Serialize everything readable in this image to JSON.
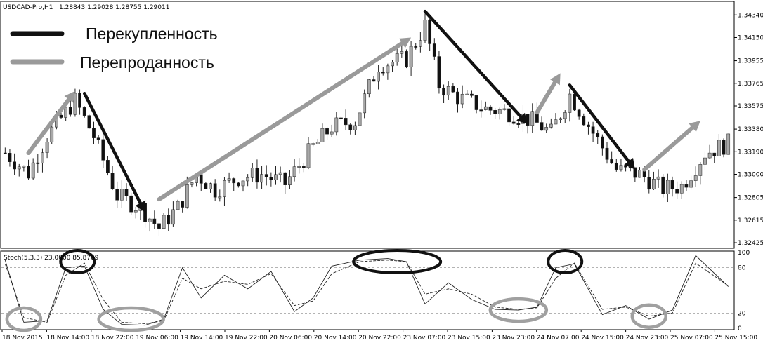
{
  "header": {
    "symbol": "USDCAD-Pro,H1",
    "ohlc": "1.28843 1.29028 1.28755 1.29011"
  },
  "legend": {
    "overbought": "Перекупленность",
    "oversold": "Перепроданность"
  },
  "stoch_header": "Stoch(5,3,3) 23.0000 85.8709",
  "colors": {
    "overbought_arrow": "#111111",
    "oversold_arrow": "#9a9a9a",
    "candle_bull": "#a8a8a8",
    "candle_bear": "#111111",
    "ellipse_dark": "#111111",
    "ellipse_light": "#a0a0a0"
  },
  "chart_data": [
    {
      "type": "candlestick",
      "title": "USDCAD-Pro,H1",
      "ylim": [
        1.3239,
        1.3443
      ],
      "yticks": [
        "1.34340",
        "1.34150",
        "1.33955",
        "1.33765",
        "1.33575",
        "1.33380",
        "1.33190",
        "1.33000",
        "1.32805",
        "1.32615",
        "1.32425"
      ],
      "xticks": [
        "18 Nov 2015",
        "18 Nov 14:00",
        "18 Nov 22:00",
        "19 Nov 06:00",
        "19 Nov 14:00",
        "19 Nov 22:00",
        "20 Nov 06:00",
        "20 Nov 14:00",
        "20 Nov 22:00",
        "23 Nov 07:00",
        "23 Nov 15:00",
        "23 Nov 23:00",
        "24 Nov 07:00",
        "24 Nov 15:00",
        "24 Nov 23:00",
        "25 Nov 07:00",
        "25 Nov 15:00"
      ],
      "close_path": [
        {
          "t": 0,
          "price": 1.3318
        },
        {
          "t": 5,
          "price": 1.3301
        },
        {
          "t": 9,
          "price": 1.3332
        },
        {
          "t": 15,
          "price": 1.3362
        },
        {
          "t": 19,
          "price": 1.3332
        },
        {
          "t": 24,
          "price": 1.3282
        },
        {
          "t": 29,
          "price": 1.3272
        },
        {
          "t": 33,
          "price": 1.3255
        },
        {
          "t": 37,
          "price": 1.3272
        },
        {
          "t": 41,
          "price": 1.33
        },
        {
          "t": 45,
          "price": 1.3287
        },
        {
          "t": 50,
          "price": 1.3297
        },
        {
          "t": 55,
          "price": 1.33
        },
        {
          "t": 60,
          "price": 1.3292
        },
        {
          "t": 65,
          "price": 1.3318
        },
        {
          "t": 70,
          "price": 1.334
        },
        {
          "t": 75,
          "price": 1.3345
        },
        {
          "t": 80,
          "price": 1.3392
        },
        {
          "t": 86,
          "price": 1.3397
        },
        {
          "t": 90,
          "price": 1.3425
        },
        {
          "t": 93,
          "price": 1.3375
        },
        {
          "t": 97,
          "price": 1.3365
        },
        {
          "t": 103,
          "price": 1.3355
        },
        {
          "t": 108,
          "price": 1.3352
        },
        {
          "t": 113,
          "price": 1.3345
        },
        {
          "t": 117,
          "price": 1.3335
        },
        {
          "t": 121,
          "price": 1.3367
        },
        {
          "t": 126,
          "price": 1.3335
        },
        {
          "t": 131,
          "price": 1.3304
        },
        {
          "t": 136,
          "price": 1.33
        },
        {
          "t": 141,
          "price": 1.3288
        },
        {
          "t": 145,
          "price": 1.329
        },
        {
          "t": 150,
          "price": 1.3318
        },
        {
          "t": 155,
          "price": 1.3326
        }
      ],
      "arrows": [
        {
          "kind": "oversold",
          "from": {
            "t": 5,
            "price": 1.3318
          },
          "to": {
            "t": 15,
            "price": 1.337
          }
        },
        {
          "kind": "overbought",
          "from": {
            "t": 17,
            "price": 1.3368
          },
          "to": {
            "t": 30,
            "price": 1.3268
          }
        },
        {
          "kind": "oversold",
          "from": {
            "t": 33,
            "price": 1.3279
          },
          "to": {
            "t": 87,
            "price": 1.3415
          }
        },
        {
          "kind": "overbought",
          "from": {
            "t": 90,
            "price": 1.3437
          },
          "to": {
            "t": 112,
            "price": 1.3342
          }
        },
        {
          "kind": "oversold",
          "from": {
            "t": 114,
            "price": 1.3352
          },
          "to": {
            "t": 119,
            "price": 1.3385
          }
        },
        {
          "kind": "overbought",
          "from": {
            "t": 121,
            "price": 1.3375
          },
          "to": {
            "t": 135,
            "price": 1.3304
          }
        },
        {
          "kind": "oversold",
          "from": {
            "t": 137,
            "price": 1.3304
          },
          "to": {
            "t": 149,
            "price": 1.3345
          }
        }
      ]
    },
    {
      "type": "line",
      "title": "Stoch(5,3,3) 23.0000 85.8709",
      "ylim": [
        0,
        100
      ],
      "yticks": [
        "100",
        "80",
        "20",
        "0"
      ],
      "levels": [
        80,
        20
      ],
      "series": [
        {
          "name": "",
          "style": "solid",
          "x": [
            0,
            4,
            9,
            13,
            17,
            21,
            25,
            30,
            34,
            38,
            42,
            47,
            52,
            57,
            62,
            66,
            70,
            76,
            82,
            86,
            90,
            95,
            100,
            105,
            110,
            114,
            118,
            122,
            128,
            133,
            138,
            143,
            148,
            155
          ],
          "values": [
            90,
            8,
            10,
            80,
            82,
            25,
            5,
            4,
            12,
            80,
            40,
            70,
            52,
            75,
            22,
            40,
            82,
            90,
            92,
            88,
            32,
            60,
            38,
            25,
            24,
            28,
            80,
            85,
            18,
            30,
            12,
            24,
            96,
            55
          ]
        },
        {
          "name": "",
          "style": "dashed",
          "x": [
            0,
            4,
            9,
            13,
            17,
            21,
            25,
            30,
            34,
            38,
            42,
            47,
            52,
            57,
            62,
            66,
            70,
            76,
            82,
            86,
            90,
            95,
            100,
            105,
            110,
            114,
            118,
            122,
            128,
            133,
            138,
            143,
            148,
            155
          ],
          "values": [
            85,
            14,
            8,
            70,
            86,
            38,
            8,
            6,
            10,
            66,
            52,
            62,
            58,
            72,
            30,
            36,
            72,
            88,
            90,
            88,
            45,
            52,
            45,
            28,
            25,
            27,
            66,
            86,
            25,
            28,
            16,
            20,
            86,
            56
          ]
        }
      ],
      "annotations": [
        {
          "kind": "oversold",
          "t": 4,
          "level": 12
        },
        {
          "kind": "overbought",
          "t": 15.5,
          "level": 88
        },
        {
          "kind": "oversold",
          "t": 27,
          "level": 12
        },
        {
          "kind": "overbought",
          "t": 84,
          "level": 88
        },
        {
          "kind": "oversold",
          "t": 110,
          "level": 24
        },
        {
          "kind": "overbought",
          "t": 120,
          "level": 88
        },
        {
          "kind": "oversold",
          "t": 138,
          "level": 16
        }
      ]
    }
  ]
}
